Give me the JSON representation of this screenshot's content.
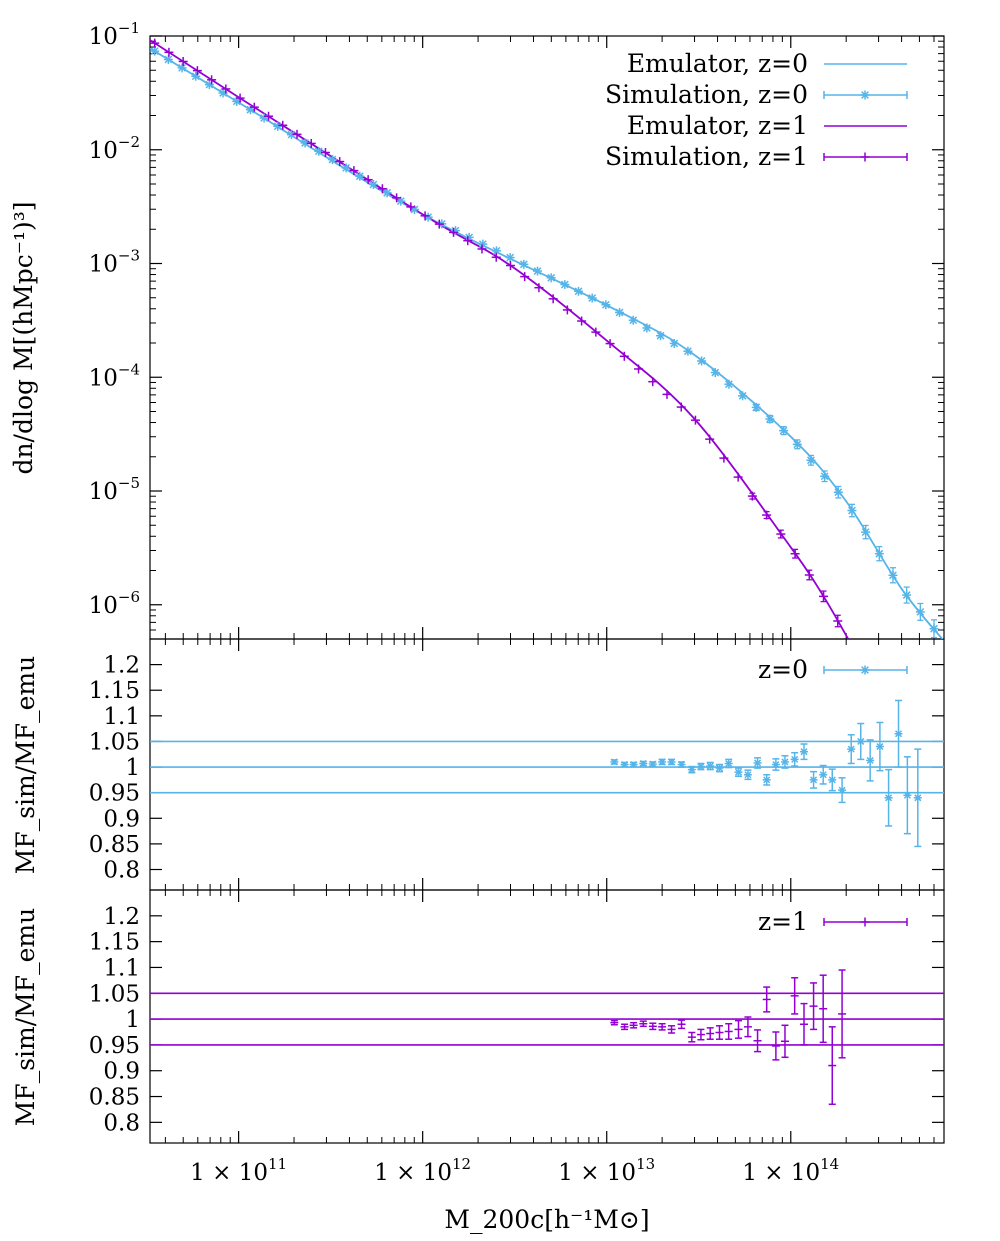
{
  "colors": {
    "z0": "#56b4e9",
    "z1": "#9400d3",
    "axis": "#000000"
  },
  "chart_data": [
    {
      "id": "top",
      "type": "line",
      "title": "",
      "ylabel": "dn/dlog M[(hMpc⁻¹)³]",
      "xscale": "log",
      "yscale": "log",
      "xlim": [
        33000000000.0,
        680000000000000.0
      ],
      "ylim": [
        5e-07,
        0.1
      ],
      "yticks": [
        {
          "value": 0.1,
          "base": "10",
          "exp": "−1"
        },
        {
          "value": 0.01,
          "base": "10",
          "exp": "−2"
        },
        {
          "value": 0.001,
          "base": "10",
          "exp": "−3"
        },
        {
          "value": 0.0001,
          "base": "10",
          "exp": "−4"
        },
        {
          "value": 1e-05,
          "base": "10",
          "exp": "−5"
        },
        {
          "value": 1e-06,
          "base": "10",
          "exp": "−6"
        }
      ],
      "legend": [
        "Emulator, z=0",
        "Simulation, z=0",
        "Emulator, z=1",
        "Simulation, z=1"
      ],
      "series": [
        {
          "name": "Emulator, z=0",
          "kind": "line",
          "color": "z0",
          "x": [
            33000000000.0,
            100000000000.0,
            1000000000000.0,
            10000000000000.0,
            30000000000000.0,
            100000000000000.0,
            200000000000000.0,
            400000000000000.0,
            680000000000000.0
          ],
          "y": [
            0.078,
            0.026,
            0.0027,
            0.00043,
            0.000157,
            3e-05,
            8.1e-06,
            1.38e-06,
            4.8e-07
          ]
        },
        {
          "name": "Simulation, z=0",
          "kind": "markers",
          "marker": "star",
          "color": "z0",
          "xmin": 35000000000.0,
          "xmax": 600000000000000.0,
          "n": 58
        },
        {
          "name": "Emulator, z=1",
          "kind": "line",
          "color": "z1",
          "x": [
            33000000000.0,
            100000000000.0,
            1000000000000.0,
            3000000000000.0,
            10000000000000.0,
            30000000000000.0,
            100000000000000.0,
            150000000000000.0,
            205000000000000.0
          ],
          "y": [
            0.092,
            0.029,
            0.0027,
            0.00096,
            0.00021,
            4.3e-05,
            3.2e-06,
            1.2e-06,
            5e-07
          ]
        },
        {
          "name": "Simulation, z=1",
          "kind": "markers",
          "marker": "plus",
          "color": "z1",
          "xmin": 35000000000.0,
          "xmax": 180000000000000.0,
          "n": 49
        }
      ]
    },
    {
      "id": "mid",
      "type": "scatter",
      "ylabel": "MF_sim/MF_emu",
      "xscale": "log",
      "xlim": [
        33000000000.0,
        680000000000000.0
      ],
      "ylim": [
        0.76,
        1.25
      ],
      "ytick_labels": [
        "1.2",
        "1.15",
        "1.1",
        "1.05",
        "1",
        "0.95",
        "0.9",
        "0.85",
        "0.8"
      ],
      "yticks": [
        1.2,
        1.15,
        1.1,
        1.05,
        1.0,
        0.95,
        0.9,
        0.85,
        0.8
      ],
      "ref_lines": [
        1.05,
        1.0,
        0.95
      ],
      "color": "z0",
      "legend": [
        "z=0"
      ],
      "marker": "star",
      "points": [
        [
          11000000000000.0,
          1.01,
          0.004
        ],
        [
          12500000000000.0,
          1.005,
          0.004
        ],
        [
          14000000000000.0,
          1.005,
          0.004
        ],
        [
          15800000000000.0,
          1.007,
          0.004
        ],
        [
          17800000000000.0,
          1.006,
          0.004
        ],
        [
          20000000000000.0,
          1.01,
          0.005
        ],
        [
          22500000000000.0,
          1.01,
          0.005
        ],
        [
          25500000000000.0,
          1.005,
          0.005
        ],
        [
          29000000000000.0,
          0.995,
          0.006
        ],
        [
          32500000000000.0,
          1.001,
          0.006
        ],
        [
          36500000000000.0,
          1.002,
          0.007
        ],
        [
          41000000000000.0,
          0.998,
          0.007
        ],
        [
          46000000000000.0,
          1.007,
          0.008
        ],
        [
          52000000000000.0,
          0.99,
          0.008
        ],
        [
          58500000000000.0,
          0.985,
          0.009
        ],
        [
          66000000000000.0,
          1.008,
          0.01
        ],
        [
          74000000000000.0,
          0.975,
          0.01
        ],
        [
          83000000000000.0,
          1.005,
          0.011
        ],
        [
          93000000000000.0,
          1.01,
          0.012
        ],
        [
          105000000000000.0,
          1.015,
          0.013
        ],
        [
          118000000000000.0,
          1.03,
          0.015
        ],
        [
          133000000000000.0,
          0.975,
          0.016
        ],
        [
          150000000000000.0,
          0.985,
          0.018
        ],
        [
          168000000000000.0,
          0.975,
          0.021
        ],
        [
          190000000000000.0,
          0.955,
          0.024
        ],
        [
          213000000000000.0,
          1.035,
          0.028
        ],
        [
          240000000000000.0,
          1.05,
          0.035
        ],
        [
          270000000000000.0,
          1.013,
          0.04
        ],
        [
          305000000000000.0,
          1.04,
          0.047
        ],
        [
          340000000000000.0,
          0.94,
          0.055
        ],
        [
          385000000000000.0,
          1.065,
          0.065
        ],
        [
          430000000000000.0,
          0.945,
          0.075
        ],
        [
          490000000000000.0,
          0.94,
          0.095
        ]
      ]
    },
    {
      "id": "bot",
      "type": "scatter",
      "ylabel": "MF_sim/MF_emu",
      "xlabel": "M_200c[h⁻¹M⊙]",
      "xscale": "log",
      "xlim": [
        33000000000.0,
        680000000000000.0
      ],
      "ylim": [
        0.76,
        1.25
      ],
      "ytick_labels": [
        "1.2",
        "1.15",
        "1.1",
        "1.05",
        "1",
        "0.95",
        "0.9",
        "0.85",
        "0.8"
      ],
      "yticks": [
        1.2,
        1.15,
        1.1,
        1.05,
        1.0,
        0.95,
        0.9,
        0.85,
        0.8
      ],
      "ref_lines": [
        1.05,
        1.0,
        0.95
      ],
      "color": "z1",
      "legend": [
        "z=1"
      ],
      "marker": "plus",
      "xticks": [
        {
          "value": 100000000000.0,
          "base": "1 × 10",
          "exp": "11"
        },
        {
          "value": 1000000000000.0,
          "base": "1 × 10",
          "exp": "12"
        },
        {
          "value": 10000000000000.0,
          "base": "1 × 10",
          "exp": "13"
        },
        {
          "value": 100000000000000.0,
          "base": "1 × 10",
          "exp": "14"
        }
      ],
      "points": [
        [
          11000000000000.0,
          0.993,
          0.004
        ],
        [
          12500000000000.0,
          0.985,
          0.005
        ],
        [
          14000000000000.0,
          0.988,
          0.005
        ],
        [
          15800000000000.0,
          0.991,
          0.005
        ],
        [
          17800000000000.0,
          0.986,
          0.006
        ],
        [
          20000000000000.0,
          0.985,
          0.006
        ],
        [
          22500000000000.0,
          0.98,
          0.007
        ],
        [
          25500000000000.0,
          0.99,
          0.008
        ],
        [
          29000000000000.0,
          0.965,
          0.009
        ],
        [
          32500000000000.0,
          0.97,
          0.01
        ],
        [
          36500000000000.0,
          0.972,
          0.011
        ],
        [
          41000000000000.0,
          0.974,
          0.013
        ],
        [
          46000000000000.0,
          0.976,
          0.015
        ],
        [
          52000000000000.0,
          0.98,
          0.017
        ],
        [
          58500000000000.0,
          0.985,
          0.019
        ],
        [
          66000000000000.0,
          0.958,
          0.021
        ],
        [
          74000000000000.0,
          1.038,
          0.024
        ],
        [
          83000000000000.0,
          0.948,
          0.027
        ],
        [
          93000000000000.0,
          0.957,
          0.031
        ],
        [
          105000000000000.0,
          1.045,
          0.035
        ],
        [
          118000000000000.0,
          0.99,
          0.04
        ],
        [
          133000000000000.0,
          1.025,
          0.045
        ],
        [
          150000000000000.0,
          1.02,
          0.065
        ],
        [
          168000000000000.0,
          0.91,
          0.075
        ],
        [
          190000000000000.0,
          1.01,
          0.085
        ]
      ]
    }
  ]
}
